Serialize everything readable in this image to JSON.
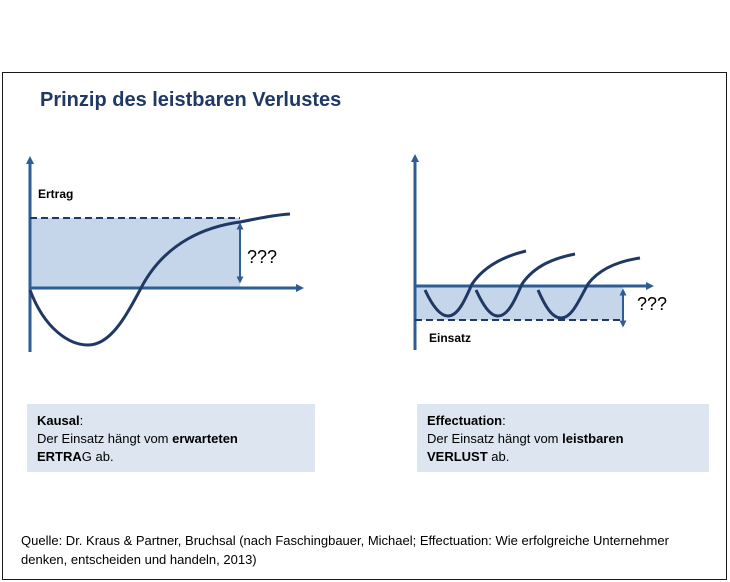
{
  "slide": {
    "title": "Prinzip des leistbaren Verlustes"
  },
  "left_diagram": {
    "y_label": "Ertrag",
    "gap_label": "???"
  },
  "right_diagram": {
    "x_label": "Einsatz",
    "gap_label": "???"
  },
  "kausal_box": {
    "heading": "Kausal",
    "heading_suffix": ":",
    "line_start": "Der Einsatz hängt vom ",
    "emph1": "erwarteten",
    "emph2_bold": "ERTRA",
    "emph2_rest": "G ab."
  },
  "effectuation_box": {
    "heading": "Effectuation",
    "heading_suffix": ":",
    "line_start": "Der Einsatz hängt vom ",
    "emph1": "leistbaren",
    "emph2_bold": "VERLUST",
    "emph2_rest": " ab."
  },
  "source_text": "Quelle: Dr. Kraus & Partner, Bruchsal (nach Faschingbauer, Michael; Effectuation: Wie erfolgreiche Unternehmer denken, entscheiden und handeln, 2013)",
  "colors": {
    "axis": "#2e5d95",
    "curve": "#1f3864",
    "fill": "#c6d6ea",
    "box": "#dde6f0"
  }
}
